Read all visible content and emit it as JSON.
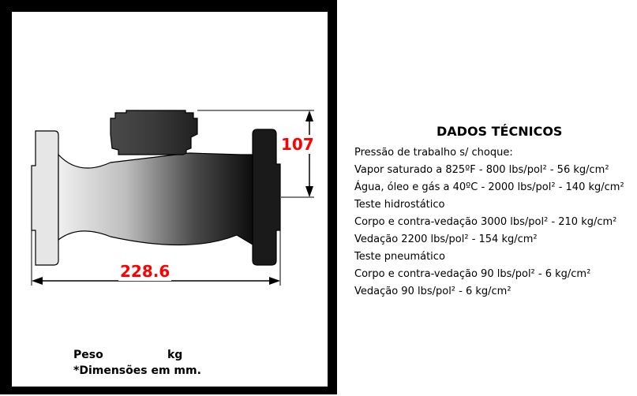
{
  "drawing": {
    "height_dimension": "107",
    "length_dimension": "228.6",
    "colors": {
      "frame": "#000000",
      "dimension_text": "#ff0000",
      "body_dark": "#1a1a1a",
      "body_light": "#e8e8e8"
    }
  },
  "footer": {
    "weight_label": "Peso",
    "weight_unit": "kg",
    "dimensions_note": "*Dimensões em mm."
  },
  "specs": {
    "title": "DADOS TÉCNICOS",
    "lines": [
      "Pressão de trabalho s/ choque:",
      "Vapor saturado a 825ºF - 800 lbs/pol² - 56 kg/cm²",
      "Água, óleo e gás a 40ºC - 2000 lbs/pol² - 140 kg/cm²",
      "Teste hidrostático",
      "Corpo e contra-vedação 3000 lbs/pol² - 210 kg/cm²",
      "Vedação 2200 lbs/pol² - 154 kg/cm²",
      "Teste pneumático",
      "Corpo e contra-vedação 90 lbs/pol² - 6 kg/cm²",
      "Vedação 90 lbs/pol² - 6 kg/cm²"
    ]
  }
}
